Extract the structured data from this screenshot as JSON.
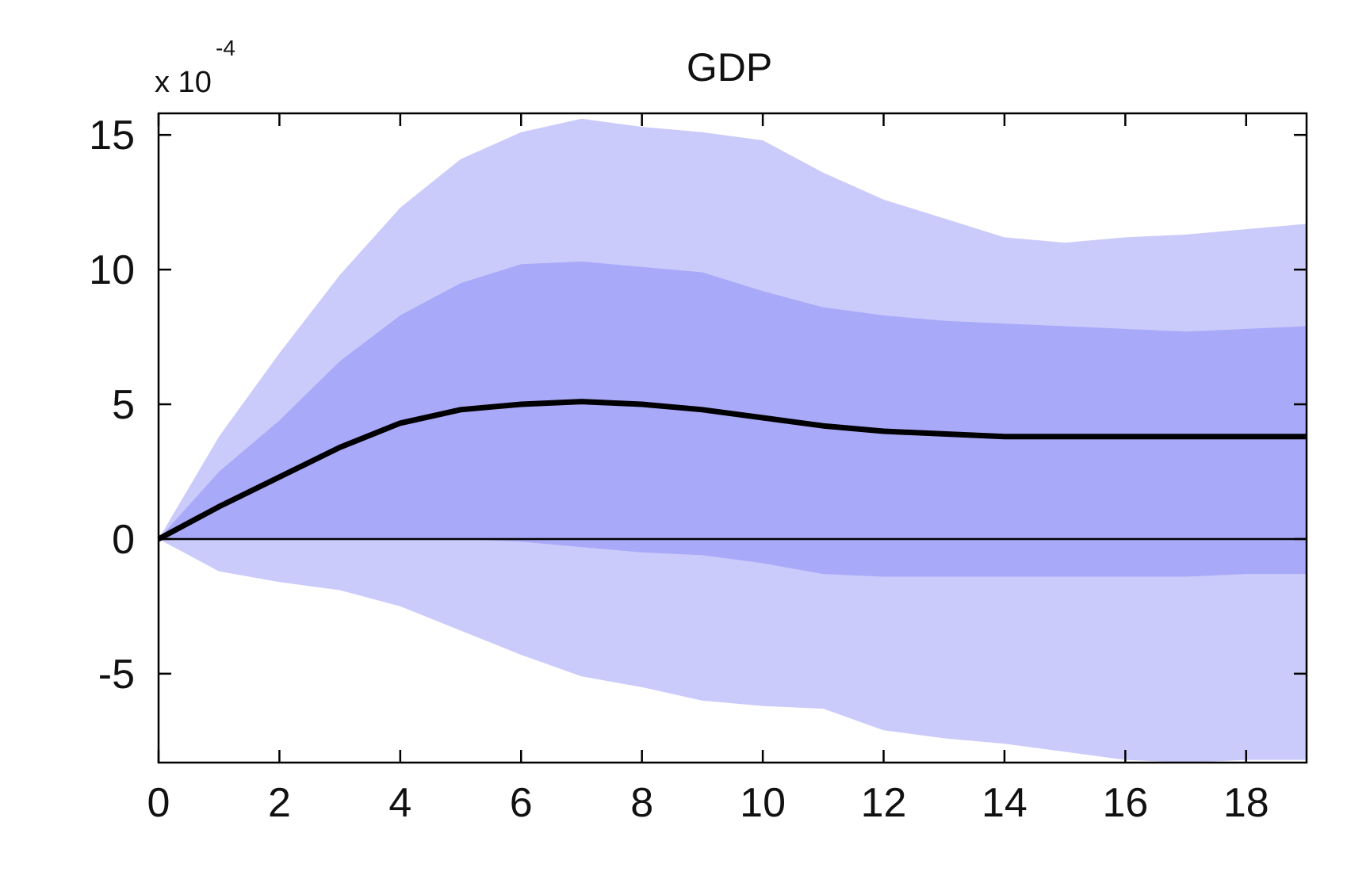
{
  "chart_data": {
    "type": "area",
    "title": "GDP",
    "xlabel": "",
    "ylabel": "",
    "y_scale_label": {
      "base": "x 10",
      "exponent": "-4"
    },
    "xlim": [
      0,
      19
    ],
    "ylim": [
      -8.3,
      15.8
    ],
    "xticks": [
      0,
      2,
      4,
      6,
      8,
      10,
      12,
      14,
      16,
      18
    ],
    "yticks": [
      -5,
      0,
      5,
      10,
      15
    ],
    "xtick_labels": [
      "0",
      "2",
      "4",
      "6",
      "8",
      "10",
      "12",
      "14",
      "16",
      "18"
    ],
    "ytick_labels": [
      "-5",
      "0",
      "5",
      "10",
      "15"
    ],
    "x": [
      0,
      1,
      2,
      3,
      4,
      5,
      6,
      7,
      8,
      9,
      10,
      11,
      12,
      13,
      14,
      15,
      16,
      17,
      18,
      19
    ],
    "series": [
      {
        "name": "outer_band_upper",
        "values": [
          0.0,
          3.8,
          6.9,
          9.8,
          12.3,
          14.1,
          15.1,
          15.6,
          15.3,
          15.1,
          14.8,
          13.6,
          12.6,
          11.9,
          11.2,
          11.0,
          11.2,
          11.3,
          11.5,
          11.7
        ]
      },
      {
        "name": "inner_band_upper",
        "values": [
          0.0,
          2.5,
          4.4,
          6.6,
          8.3,
          9.5,
          10.2,
          10.3,
          10.1,
          9.9,
          9.2,
          8.6,
          8.3,
          8.1,
          8.0,
          7.9,
          7.8,
          7.7,
          7.8,
          7.9
        ]
      },
      {
        "name": "median_response",
        "values": [
          0.0,
          1.2,
          2.3,
          3.4,
          4.3,
          4.8,
          5.0,
          5.1,
          5.0,
          4.8,
          4.5,
          4.2,
          4.0,
          3.9,
          3.8,
          3.8,
          3.8,
          3.8,
          3.8,
          3.8
        ]
      },
      {
        "name": "inner_band_lower",
        "values": [
          0.0,
          0.0,
          0.0,
          0.0,
          0.0,
          0.0,
          -0.1,
          -0.3,
          -0.5,
          -0.6,
          -0.9,
          -1.3,
          -1.4,
          -1.4,
          -1.4,
          -1.4,
          -1.4,
          -1.4,
          -1.3,
          -1.3
        ]
      },
      {
        "name": "outer_band_lower",
        "values": [
          0.0,
          -1.2,
          -1.6,
          -1.9,
          -2.5,
          -3.4,
          -4.3,
          -5.1,
          -5.5,
          -6.0,
          -6.2,
          -6.3,
          -7.1,
          -7.4,
          -7.6,
          -7.9,
          -8.2,
          -8.3,
          -8.2,
          -8.2
        ]
      }
    ],
    "zero_line": 0,
    "grid": false,
    "colors": {
      "outer_band": "#cbcbfb",
      "inner_band": "#a9a9f9",
      "median_line": "#000000",
      "axis": "#000000"
    }
  }
}
